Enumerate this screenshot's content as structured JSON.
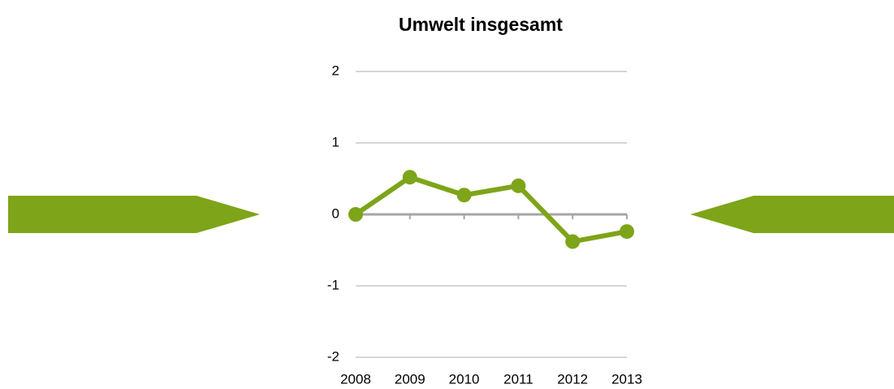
{
  "chart_data": {
    "type": "line",
    "title": "Umwelt insgesamt",
    "categories": [
      "2008",
      "2009",
      "2010",
      "2011",
      "2012",
      "2013"
    ],
    "series": [
      {
        "name": "Umwelt insgesamt",
        "color": "#7ea419",
        "values": [
          0,
          0.52,
          0.27,
          0.4,
          -0.38,
          -0.24
        ]
      }
    ],
    "ylim": [
      -2,
      2
    ],
    "yticks": [
      -2,
      -1,
      0,
      1,
      2
    ],
    "grid": true
  }
}
